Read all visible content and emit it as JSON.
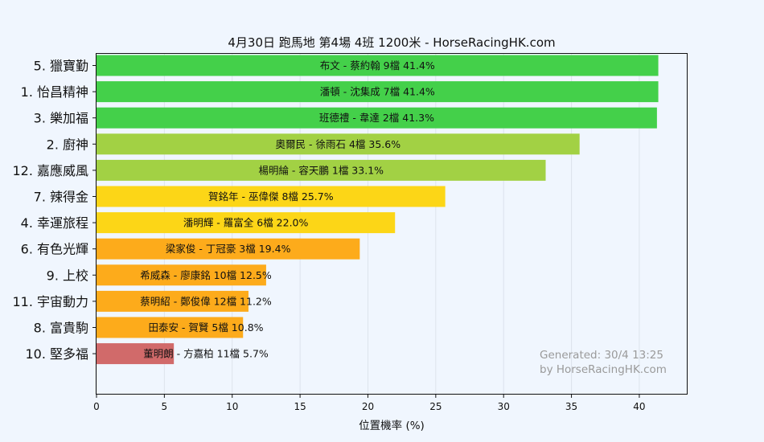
{
  "chart_data": {
    "type": "bar",
    "orientation": "horizontal",
    "title": "4月30日  跑馬地  第4場  4班  1200米 - HorseRacingHK.com",
    "xlabel": "位置機率 (%)",
    "ylabel": "",
    "xlim": [
      0,
      43.5
    ],
    "xticks": [
      "0",
      "5",
      "10",
      "15",
      "20",
      "25",
      "30",
      "35",
      "40"
    ],
    "grid": true,
    "categories": [
      "5. 獵寶勤",
      "1. 怡昌精神",
      "3. 樂加福",
      "2. 廚神",
      "12. 嘉應威風",
      "7. 辣得金",
      "4. 幸運旅程",
      "6. 有色光輝",
      "9. 上校",
      "11. 宇宙動力",
      "8. 富貴駒",
      "10. 堅多福"
    ],
    "values": [
      41.4,
      41.4,
      41.3,
      35.6,
      33.1,
      25.7,
      22.0,
      19.4,
      12.5,
      11.2,
      10.8,
      5.7
    ],
    "bar_labels": [
      "布文 - 蔡約翰 9檔  41.4%",
      "潘頓 - 沈集成 7檔  41.4%",
      "班德禮 - 韋達 2檔  41.3%",
      "奧爾民 - 徐雨石 4檔  35.6%",
      "楊明綸 - 容天鵬 1檔  33.1%",
      "賀銘年 - 巫偉傑 8檔  25.7%",
      "潘明輝 - 羅富全 6檔  22.0%",
      "梁家俊 - 丁冠豪 3檔  19.4%",
      "希威森 - 廖康銘 10檔  12.5%",
      "蔡明紹 - 鄭俊偉 12檔  11.2%",
      "田泰安 - 賀賢 5檔  10.8%",
      "董明朗 - 方嘉柏 11檔  5.7%"
    ],
    "colors": [
      "#44d04a",
      "#44d04a",
      "#44d04a",
      "#a2d144",
      "#a2d144",
      "#fcd617",
      "#fcd617",
      "#fdab1b",
      "#fdab1b",
      "#fdab1b",
      "#fdab1b",
      "#d16a6a"
    ]
  },
  "watermark": {
    "line1": "Generated: 30/4 13:25",
    "line2": "by HorseRacingHK.com"
  }
}
